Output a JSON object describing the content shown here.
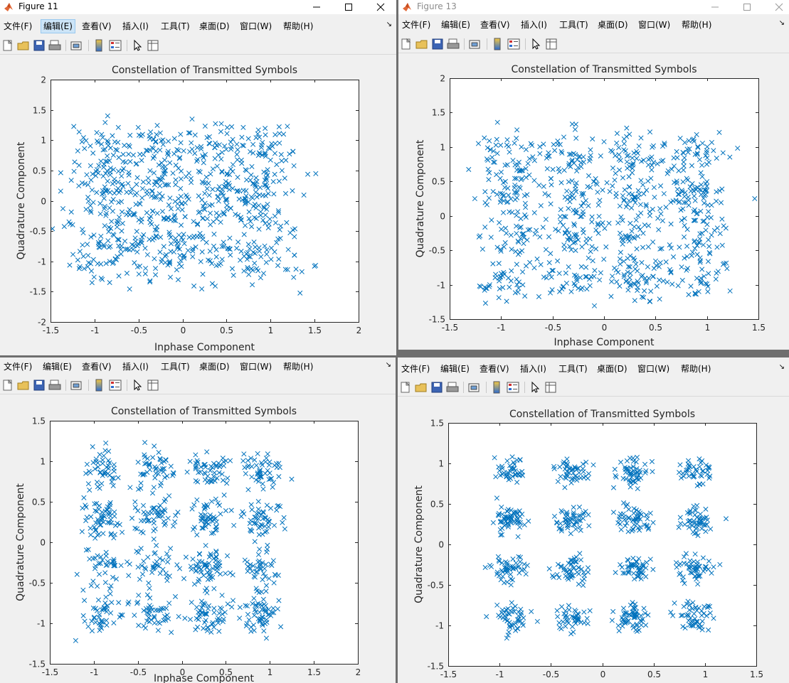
{
  "windows": [
    {
      "id": "tl",
      "title": "Figure 11",
      "title_dim": false,
      "show_controls": true,
      "menu": [
        "文件(F)",
        "编辑(E)",
        "查看(V)",
        "插入(I)",
        "工具(T)",
        "桌面(D)",
        "窗口(W)",
        "帮助(H)"
      ],
      "menu_highlight": 1
    },
    {
      "id": "tr",
      "title": "Figure 13",
      "title_dim": true,
      "show_controls": true,
      "menu": [
        "文件(F)",
        "编辑(E)",
        "查看(V)",
        "插入(I)",
        "工具(T)",
        "桌面(D)",
        "窗口(W)",
        "帮助(H)"
      ],
      "menu_highlight": -1
    },
    {
      "id": "bl",
      "title": "",
      "title_dim": false,
      "show_controls": false,
      "menu": [
        "文件(F)",
        "编辑(E)",
        "查看(V)",
        "插入(I)",
        "工具(T)",
        "桌面(D)",
        "窗口(W)",
        "帮助(H)"
      ],
      "menu_highlight": -1
    },
    {
      "id": "br",
      "title": "",
      "title_dim": false,
      "show_controls": false,
      "menu": [
        "文件(F)",
        "编辑(E)",
        "查看(V)",
        "插入(I)",
        "工具(T)",
        "桌面(D)",
        "窗口(W)",
        "帮助(H)"
      ],
      "menu_highlight": -1
    }
  ],
  "chart_data": [
    {
      "window": "tl",
      "type": "scatter",
      "title": "Constellation of Transmitted Symbols",
      "xlabel": "Inphase Component",
      "ylabel": "Quadrature Component",
      "xlim": [
        -1.5,
        2
      ],
      "ylim": [
        -2,
        2
      ],
      "xticks": [
        "-1.5",
        "-1",
        "-0.5",
        "0",
        "0.5",
        "1",
        "1.5",
        "2"
      ],
      "yticks": [
        "-2",
        "-1.5",
        "-1",
        "-0.5",
        "0",
        "0.5",
        "1",
        "1.5",
        "2"
      ],
      "marker": "x",
      "color": "#0072bd",
      "series": [
        {
          "points_generated": "16-QAM constellation points (±0.3, ±0.9) with heavy noise",
          "count": 800,
          "noise": 0.22,
          "seed": 11
        }
      ]
    },
    {
      "window": "tr",
      "type": "scatter",
      "title": "Constellation of Transmitted Symbols",
      "xlabel": "Inphase Component",
      "ylabel": "Quadrature Component",
      "xlim": [
        -1.5,
        1.5
      ],
      "ylim": [
        -1.5,
        2
      ],
      "xticks": [
        "-1.5",
        "-1",
        "-0.5",
        "0",
        "0.5",
        "1",
        "1.5"
      ],
      "yticks": [
        "-1.5",
        "-1",
        "-0.5",
        "0",
        "0.5",
        "1",
        "1.5",
        "2"
      ],
      "marker": "x",
      "color": "#0072bd",
      "series": [
        {
          "points_generated": "16-QAM constellation points (±0.3, ±0.9) with noise",
          "count": 800,
          "noise": 0.17,
          "seed": 13
        }
      ]
    },
    {
      "window": "bl",
      "type": "scatter",
      "title": "Constellation of Transmitted Symbols",
      "xlabel": "Inphase Component",
      "ylabel": "Quadrature Component",
      "xlim": [
        -1.5,
        2
      ],
      "ylim": [
        -1.5,
        1.5
      ],
      "xticks": [
        "-1.5",
        "-1",
        "-0.5",
        "0",
        "0.5",
        "1",
        "1.5",
        "2"
      ],
      "yticks": [
        "-1.5",
        "-1",
        "-0.5",
        "0",
        "0.5",
        "1",
        "1.5"
      ],
      "marker": "x",
      "color": "#0072bd",
      "series": [
        {
          "points_generated": "16-QAM constellation points (±0.3, ±0.9) with moderate noise",
          "count": 800,
          "noise": 0.12,
          "seed": 21
        }
      ]
    },
    {
      "window": "br",
      "type": "scatter",
      "title": "Constellation of Transmitted Symbols",
      "xlabel": "",
      "ylabel": "Quadrature Component",
      "xlim": [
        -1.5,
        1.5
      ],
      "ylim": [
        -1.5,
        1.5
      ],
      "xticks": [
        "-1.5",
        "-1",
        "-0.5",
        "0",
        "0.5",
        "1",
        "1.5"
      ],
      "yticks": [
        "-1.5",
        "-1",
        "-0.5",
        "0",
        "0.5",
        "1",
        "1.5"
      ],
      "marker": "x",
      "color": "#0072bd",
      "series": [
        {
          "points_generated": "16-QAM constellation points (±0.3, ±0.9) with light noise",
          "count": 800,
          "noise": 0.085,
          "seed": 31
        }
      ]
    }
  ]
}
